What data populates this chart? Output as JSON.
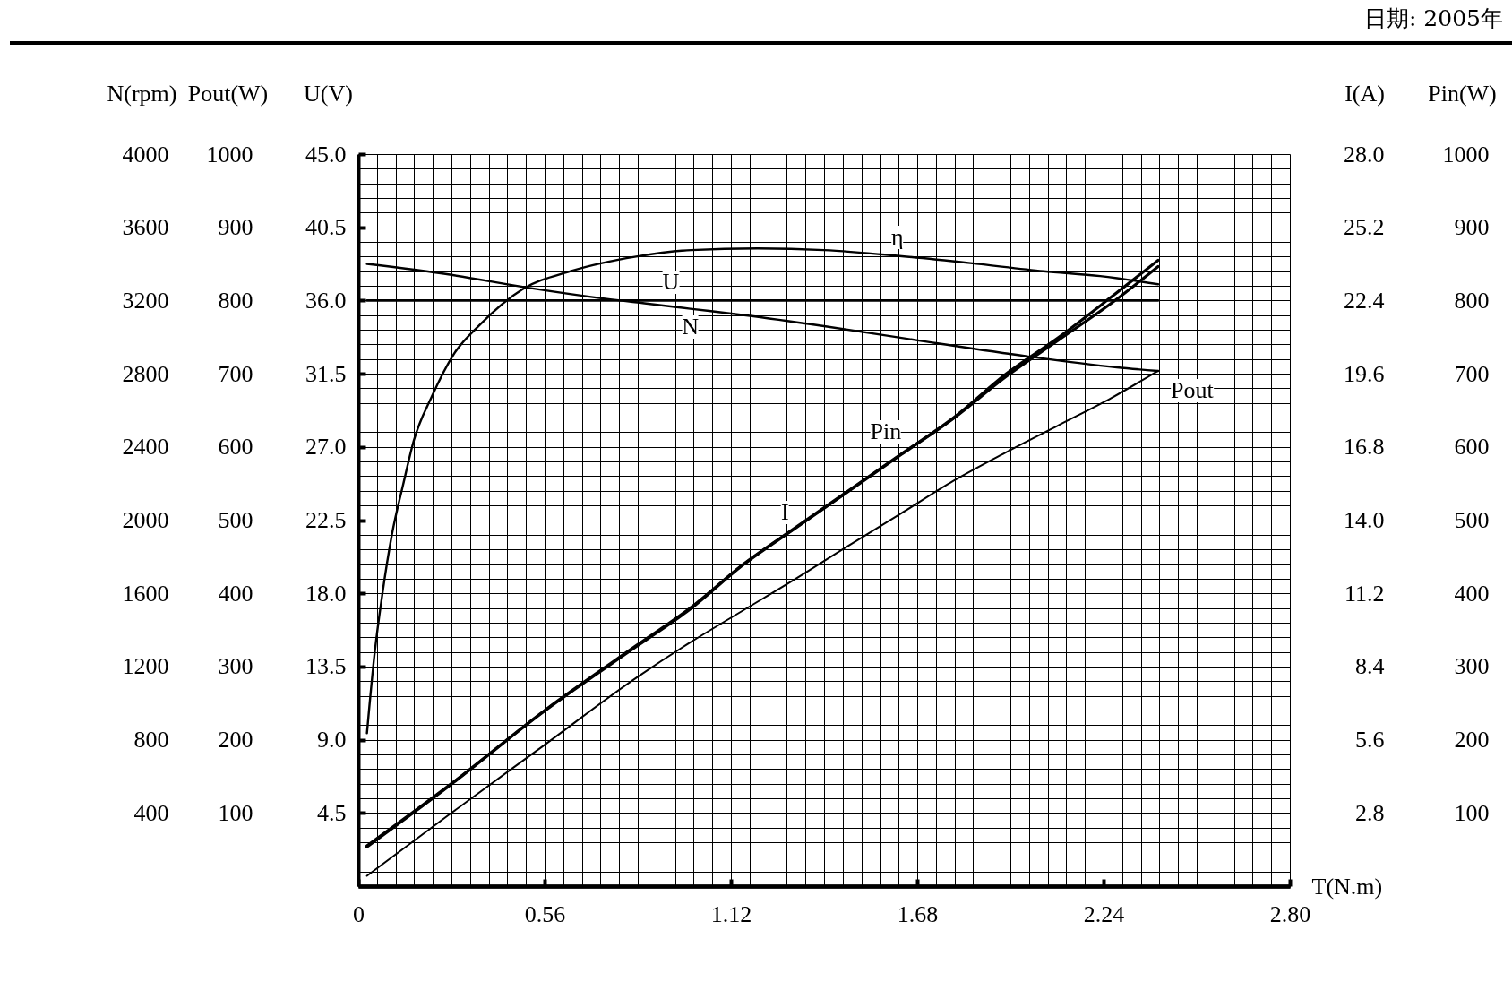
{
  "chart_data": [
    {
      "type": "line",
      "xlabel": "T(N.m)",
      "ylabel": "U(V)",
      "y2label": "I(A)",
      "y3label": "Pin(W)",
      "xlim": [
        0,
        2.8
      ],
      "xticks": [
        0,
        {
          "value": 0.056,
          "label": null
        },
        {
          "value": 0.112,
          "label": null
        },
        {
          "value": 0.168,
          "label": null
        },
        {
          "value": 0.224,
          "label": null
        },
        {
          "value": 0.28,
          "label": null
        },
        {
          "value": 0.336,
          "label": null
        },
        {
          "value": 0.392,
          "label": null
        },
        {
          "value": 0.448,
          "label": null
        },
        {
          "value": 0.504,
          "label": null
        },
        0.56,
        {
          "value": 0.616,
          "label": null
        },
        {
          "value": 0.672,
          "label": null
        },
        {
          "value": 0.728,
          "label": null
        },
        {
          "value": 0.784,
          "label": null
        },
        {
          "value": 0.84,
          "label": null
        },
        {
          "value": 0.896,
          "label": null
        },
        {
          "value": 0.952,
          "label": null
        },
        {
          "value": 1.008,
          "label": null
        },
        {
          "value": 1.064,
          "label": null
        },
        1.12,
        {
          "value": 1.176,
          "label": null
        },
        {
          "value": 1.232,
          "label": null
        },
        {
          "value": 1.288,
          "label": null
        },
        {
          "value": 1.344,
          "label": null
        },
        {
          "value": 1.4,
          "label": null
        },
        {
          "value": 1.456,
          "label": null
        },
        {
          "value": 1.512,
          "label": null
        },
        {
          "value": 1.568,
          "label": null
        },
        {
          "value": 1.624,
          "label": null
        },
        1.68,
        {
          "value": 1.736,
          "label": null
        },
        {
          "value": 1.792,
          "label": null
        },
        {
          "value": 1.848,
          "label": null
        },
        {
          "value": 1.904,
          "label": null
        },
        {
          "value": 1.96,
          "label": null
        },
        {
          "value": 2.016,
          "label": null
        },
        {
          "value": 2.072,
          "label": null
        },
        {
          "value": 2.128,
          "label": null
        },
        {
          "value": 2.184,
          "label": null
        },
        2.24,
        {
          "value": 2.296,
          "label": null
        },
        {
          "value": 2.352,
          "label": null
        },
        {
          "value": 2.408,
          "label": null
        },
        {
          "value": 2.464,
          "label": null
        },
        {
          "value": 2.52,
          "label": null
        },
        {
          "value": 2.576,
          "label": null
        },
        {
          "value": 2.632,
          "label": null
        },
        {
          "value": 2.688,
          "label": null
        },
        {
          "value": 2.744,
          "label": null
        },
        {
          "value": 2.8,
          "label": "2.80"
        }
      ],
      "ylim": [
        0,
        45
      ],
      "yticks": [
        {
          "value": 0,
          "label": null
        },
        {
          "value": 0.9,
          "label": null
        },
        {
          "value": 1.8,
          "label": null
        },
        {
          "value": 2.7,
          "label": null
        },
        {
          "value": 3.6,
          "label": null
        },
        4.5,
        {
          "value": 5.4,
          "label": null
        },
        {
          "value": 6.3,
          "label": null
        },
        {
          "value": 7.2,
          "label": null
        },
        {
          "value": 8.1,
          "label": null
        },
        {
          "value": 9,
          "label": "9.0"
        },
        {
          "value": 9.9,
          "label": null
        },
        {
          "value": 10.8,
          "label": null
        },
        {
          "value": 11.7,
          "label": null
        },
        {
          "value": 12.6,
          "label": null
        },
        13.5,
        {
          "value": 14.4,
          "label": null
        },
        {
          "value": 15.3,
          "label": null
        },
        {
          "value": 16.2,
          "label": null
        },
        {
          "value": 17.1,
          "label": null
        },
        {
          "value": 18,
          "label": "18.0"
        },
        {
          "value": 18.9,
          "label": null
        },
        {
          "value": 19.8,
          "label": null
        },
        {
          "value": 20.7,
          "label": null
        },
        {
          "value": 21.6,
          "label": null
        },
        22.5,
        {
          "value": 23.4,
          "label": null
        },
        {
          "value": 24.3,
          "label": null
        },
        {
          "value": 25.2,
          "label": null
        },
        {
          "value": 26.1,
          "label": null
        },
        {
          "value": 27,
          "label": "27.0"
        },
        {
          "value": 27.9,
          "label": null
        },
        {
          "value": 28.8,
          "label": null
        },
        {
          "value": 29.7,
          "label": null
        },
        {
          "value": 30.6,
          "label": null
        },
        31.5,
        {
          "value": 32.4,
          "label": null
        },
        {
          "value": 33.3,
          "label": null
        },
        {
          "value": 34.2,
          "label": null
        },
        {
          "value": 35.1,
          "label": null
        },
        {
          "value": 36,
          "label": "36.0"
        },
        {
          "value": 36.9,
          "label": null
        },
        {
          "value": 37.8,
          "label": null
        },
        {
          "value": 38.7,
          "label": null
        },
        {
          "value": 39.6,
          "label": null
        },
        40.5,
        {
          "value": 41.4,
          "label": null
        },
        {
          "value": 42.3,
          "label": null
        },
        {
          "value": 43.2,
          "label": null
        },
        {
          "value": 44.1,
          "label": null
        },
        {
          "value": 45,
          "label": "45.0"
        }
      ],
      "y2lim": [
        0,
        28
      ],
      "y2ticks": [
        2.8,
        5.6,
        8.4,
        11.2,
        {
          "value": 14,
          "label": "14.0"
        },
        16.8,
        19.6,
        22.4,
        25.2,
        {
          "value": 28,
          "label": "28.0"
        }
      ],
      "y3lim": [
        0,
        1000
      ],
      "y3ticks": [
        100,
        200,
        300,
        400,
        500,
        600,
        700,
        800,
        900,
        1000
      ],
      "grid": true,
      "annotations": [
        "日期: 2005年"
      ],
      "series": [
        {
          "name": "U",
          "color": "#000000",
          "x": [
            0.026,
            0.6,
            1.2,
            1.8,
            2.404
          ],
          "values": [
            36,
            36,
            36,
            36,
            36
          ]
        },
        {
          "name": "η",
          "color": "#000000",
          "x": [
            0.026,
            0.049,
            0.072,
            0.101,
            0.135,
            0.167,
            0.221,
            0.287,
            0.365,
            0.494,
            0.638,
            0.835,
            1.0,
            1.2,
            1.4,
            1.62,
            1.84,
            2.06,
            2.23,
            2.404
          ],
          "values": [
            9.4,
            14.3,
            17.9,
            21.6,
            24.7,
            27.4,
            30.1,
            32.7,
            34.5,
            36.7,
            37.8,
            38.7,
            39.1,
            39.2,
            39.1,
            38.75,
            38.3,
            37.8,
            37.5,
            37.0
          ]
        },
        {
          "name": "I",
          "color": "#000000",
          "axis": "y2",
          "x": [
            0.026,
            0.28,
            0.56,
            0.84,
            0.998,
            1.158,
            1.315,
            1.473,
            1.631,
            1.79,
            1.948,
            2.106,
            2.264,
            2.404
          ],
          "values": [
            1.5,
            3.9,
            6.7,
            9.2,
            10.6,
            12.3,
            13.7,
            15.1,
            16.5,
            17.9,
            19.5,
            20.9,
            22.3,
            23.7
          ]
        },
        {
          "name": "Pin",
          "color": "#000000",
          "axis": "y3",
          "x": [
            0.026,
            0.28,
            0.56,
            0.84,
            0.998,
            1.158,
            1.315,
            1.473,
            1.631,
            1.79,
            1.948,
            2.106,
            2.264,
            2.404
          ],
          "values": [
            55,
            140,
            240,
            330,
            380,
            440,
            490,
            540,
            590,
            640,
            700,
            750,
            805,
            855
          ]
        }
      ]
    },
    {
      "type": "line",
      "ylabel": "Pout(W)",
      "xlim": [
        0,
        2.8
      ],
      "ylim": [
        0,
        1000
      ],
      "yticks": [
        100,
        200,
        300,
        400,
        500,
        600,
        700,
        800,
        900,
        1000
      ],
      "tick_labels": "y",
      "series": [
        {
          "name": "Pout",
          "color": "#000000",
          "x": [
            0.026,
            0.28,
            0.56,
            0.84,
            0.998,
            1.158,
            1.315,
            1.473,
            1.631,
            1.79,
            1.948,
            2.106,
            2.264,
            2.404
          ],
          "values": [
            14,
            100,
            193,
            286,
            333,
            377,
            420,
            465,
            509,
            554,
            593,
            630,
            667,
            704
          ]
        }
      ]
    },
    {
      "type": "line",
      "ylabel": "N(rpm)",
      "xlim": [
        0,
        2.8
      ],
      "ylim": [
        0,
        4000
      ],
      "yticks": [
        400,
        800,
        1200,
        1600,
        2000,
        2400,
        2800,
        3200,
        3600,
        4000
      ],
      "tick_labels": "y",
      "series": [
        {
          "name": "N",
          "color": "#000000",
          "x": [
            0.026,
            0.28,
            0.51,
            0.72,
            0.86,
            0.998,
            1.16,
            1.4,
            1.69,
            2.01,
            2.28,
            2.404
          ],
          "values": [
            3400,
            3340,
            3270,
            3215,
            3185,
            3155,
            3120,
            3060,
            2980,
            2895,
            2835,
            2815
          ]
        }
      ]
    }
  ]
}
